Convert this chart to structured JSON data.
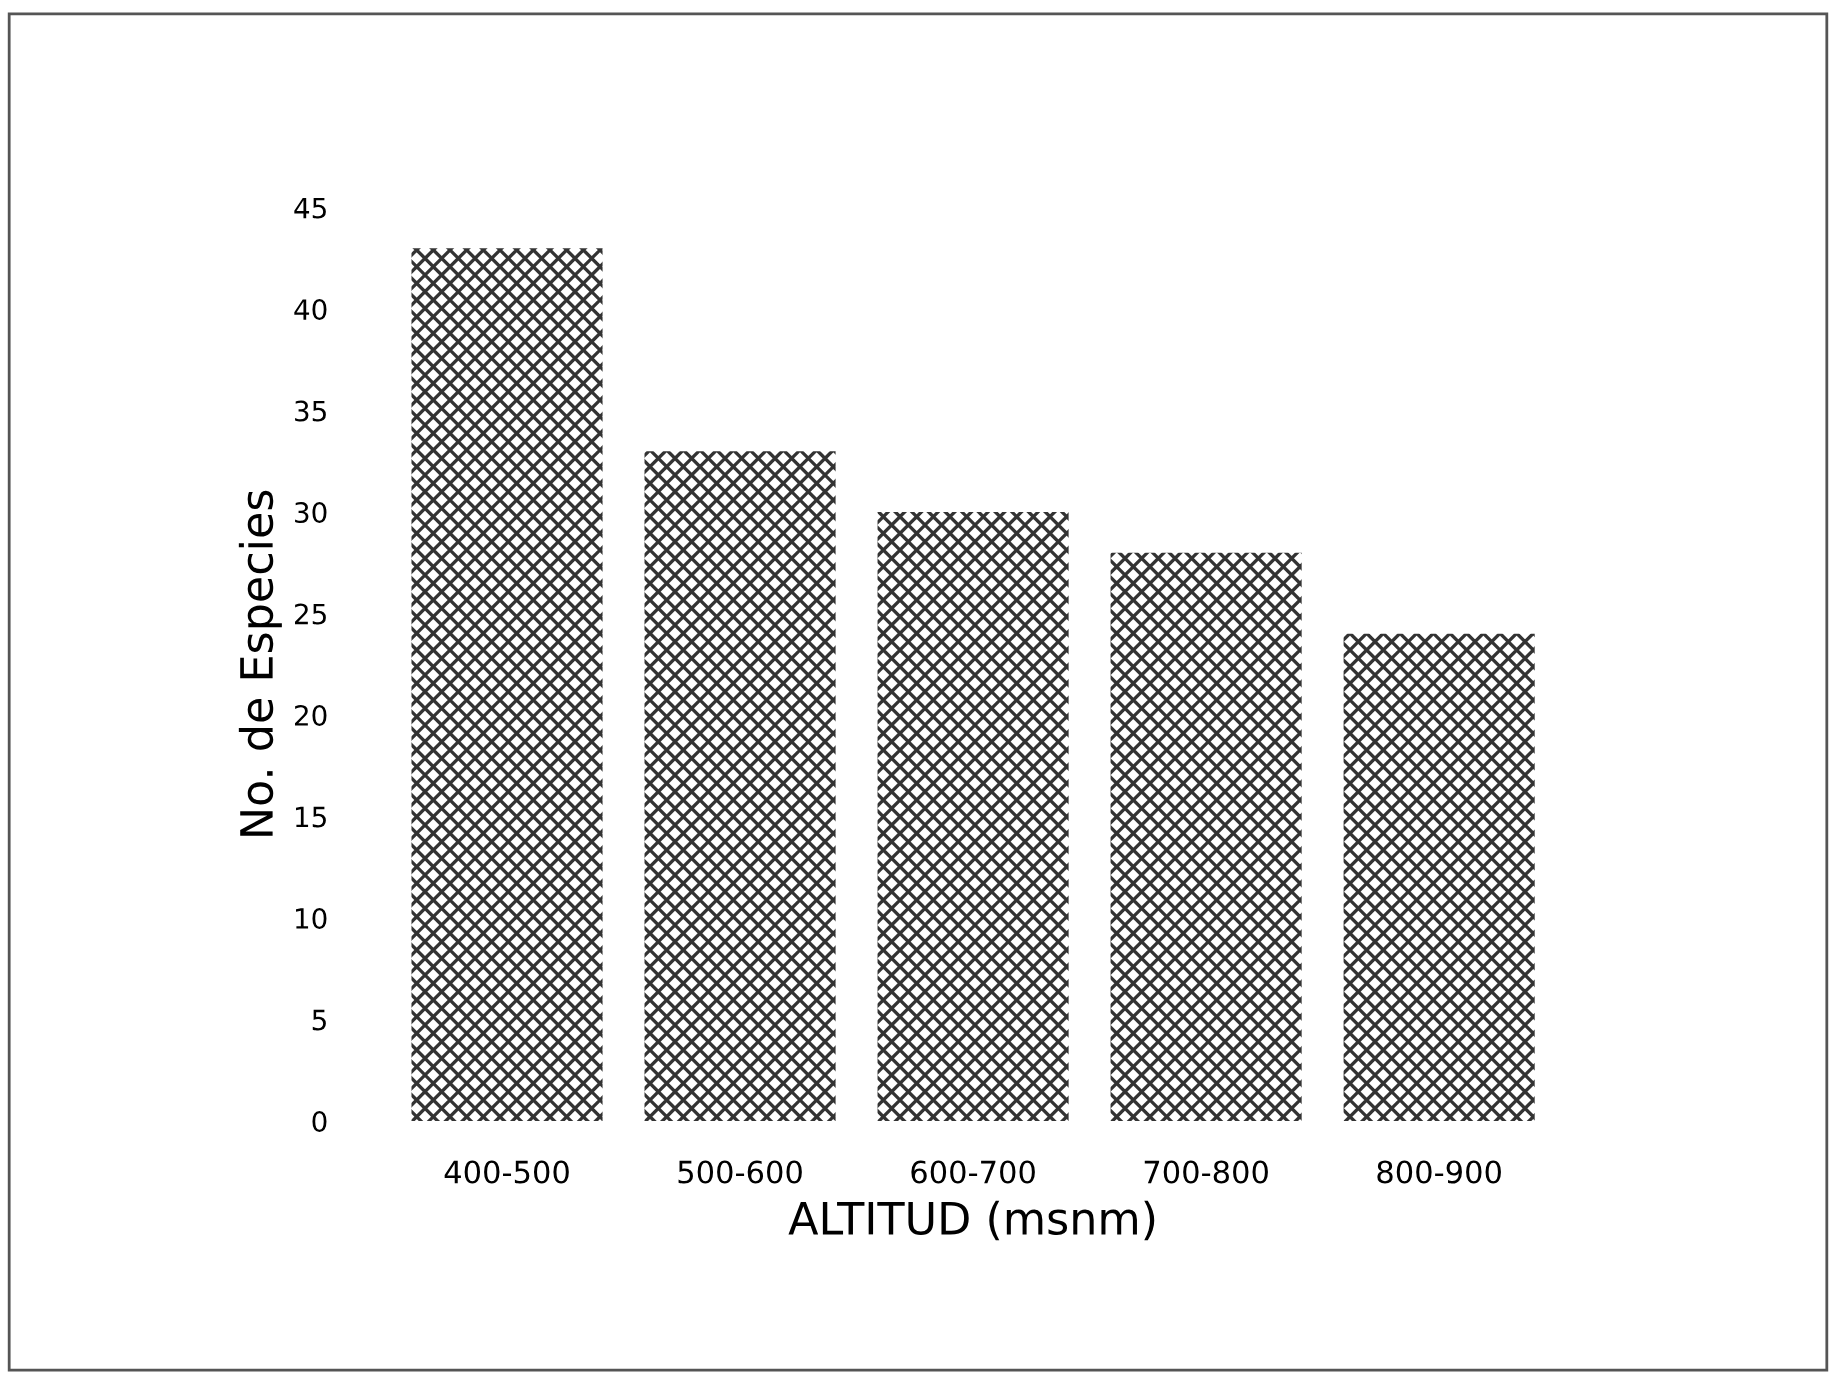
{
  "chart_data": {
    "type": "bar",
    "xlabel": "ALTITUD (msnm)",
    "ylabel": "No. de Especies",
    "categories": [
      "400-500",
      "500-600",
      "600-700",
      "700-800",
      "800-900"
    ],
    "values": [
      43,
      33,
      30,
      28,
      24
    ],
    "color": "#333333",
    "ylim": [
      0,
      45
    ],
    "yticks": [
      0,
      5,
      10,
      15,
      20,
      25,
      30,
      35,
      40,
      45
    ],
    "grid": false
  }
}
